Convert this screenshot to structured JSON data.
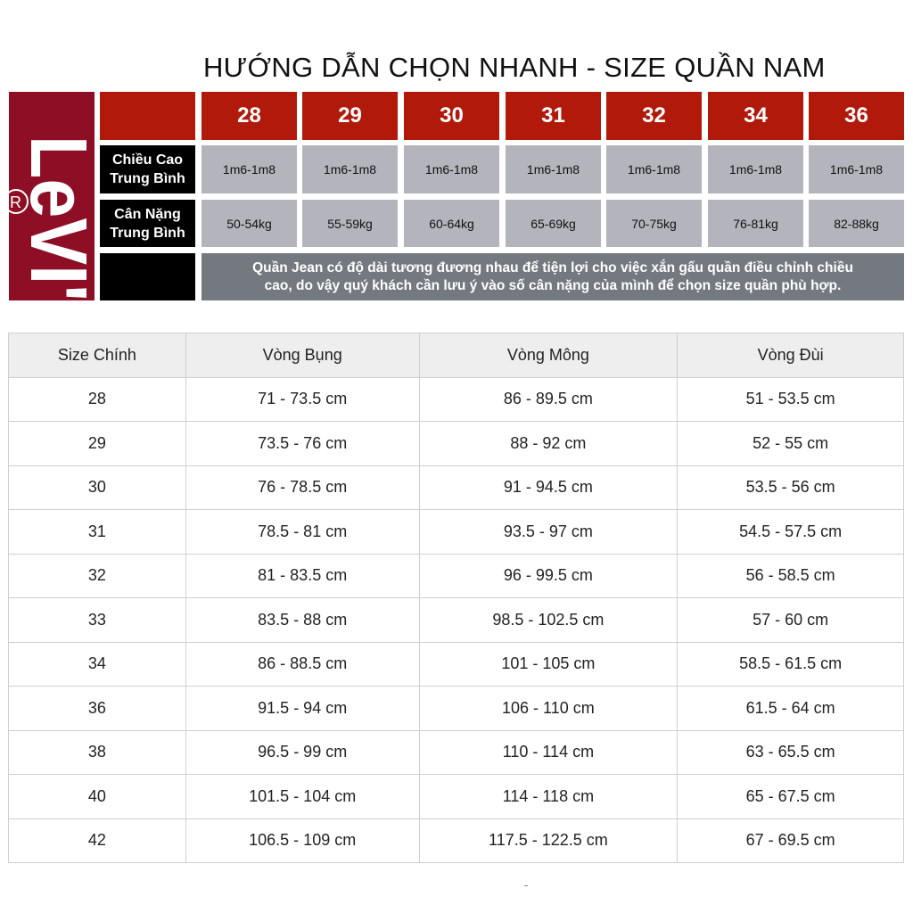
{
  "title": "HƯỚNG DẪN CHỌN NHANH - SIZE QUẦN NAM",
  "logo": {
    "text": "Levi's",
    "color": "#8e0e25"
  },
  "quick": {
    "sizes": [
      "28",
      "29",
      "30",
      "31",
      "32",
      "34",
      "36"
    ],
    "height_label": "Chiều Cao Trung Bình",
    "height_values": [
      "1m6-1m8",
      "1m6-1m8",
      "1m6-1m8",
      "1m6-1m8",
      "1m6-1m8",
      "1m6-1m8",
      "1m6-1m8"
    ],
    "weight_label": "Cân Nặng Trung Bình",
    "weight_values": [
      "50-54kg",
      "55-59kg",
      "60-64kg",
      "65-69kg",
      "70-75kg",
      "76-81kg",
      "82-88kg"
    ],
    "note": "Quần Jean có độ dài tương đương nhau để tiện lợi cho việc xắn gấu quần điều chỉnh chiều cao, do vậy quý khách cần lưu ý vào số cân nặng của mình để chọn size quần phù hợp."
  },
  "table": {
    "headers": [
      "Size Chính",
      "Vòng Bụng",
      "Vòng Mông",
      "Vòng Đùi"
    ],
    "rows": [
      [
        "28",
        "71 - 73.5 cm",
        "86 - 89.5 cm",
        "51 - 53.5 cm"
      ],
      [
        "29",
        "73.5 - 76 cm",
        "88 - 92 cm",
        "52 - 55 cm"
      ],
      [
        "30",
        "76 - 78.5 cm",
        "91 - 94.5 cm",
        "53.5 - 56 cm"
      ],
      [
        "31",
        "78.5 - 81 cm",
        "93.5 - 97 cm",
        "54.5 - 57.5 cm"
      ],
      [
        "32",
        "81 - 83.5 cm",
        "96 - 99.5 cm",
        "56 - 58.5 cm"
      ],
      [
        "33",
        "83.5 - 88 cm",
        "98.5 - 102.5 cm",
        "57 - 60 cm"
      ],
      [
        "34",
        "86 - 88.5 cm",
        "101 - 105 cm",
        "58.5 - 61.5 cm"
      ],
      [
        "36",
        "91.5 - 94 cm",
        "106 - 110 cm",
        "61.5 - 64 cm"
      ],
      [
        "38",
        "96.5 - 99 cm",
        "110 - 114 cm",
        "63 - 65.5 cm"
      ],
      [
        "40",
        "101.5 - 104 cm",
        "114 - 118 cm",
        "65 - 67.5 cm"
      ],
      [
        "42",
        "106.5 - 109 cm",
        "117.5 - 122.5 cm",
        "67 - 69.5 cm"
      ]
    ]
  }
}
